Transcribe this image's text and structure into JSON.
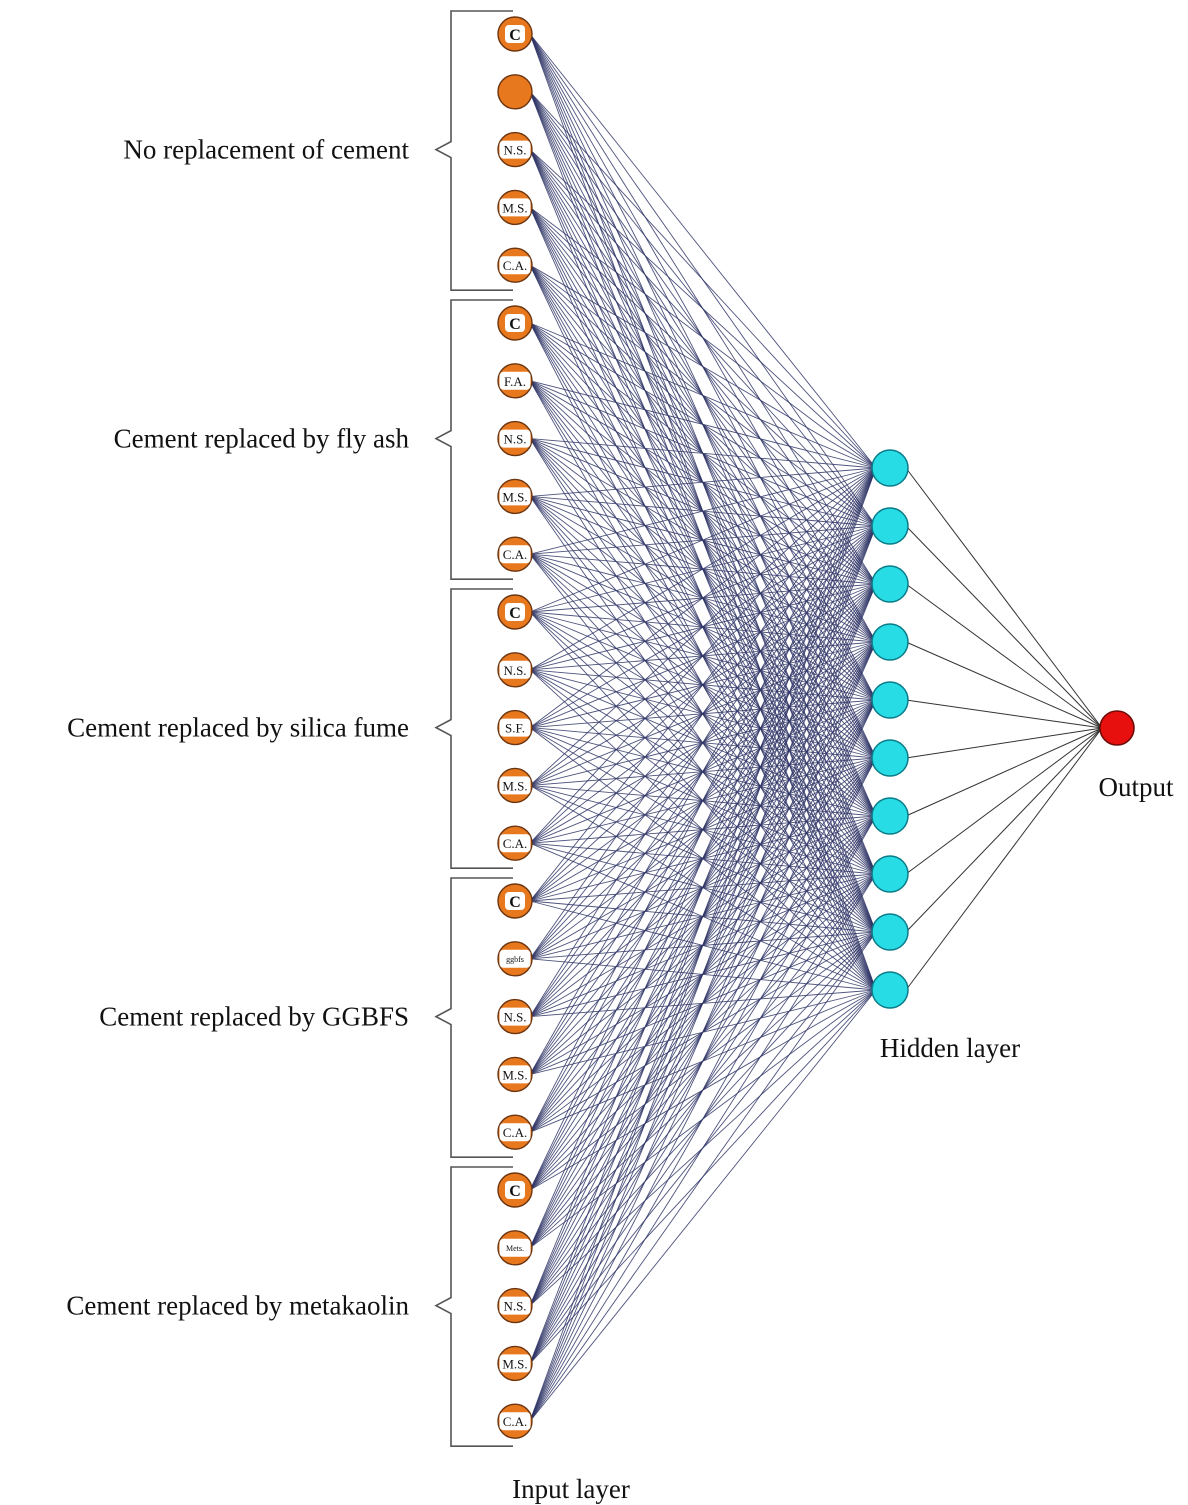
{
  "colors": {
    "input_node": "#e8781e",
    "input_node_stroke": "#6b3510",
    "input_label_bg": "#ffffff",
    "hidden_node": "#28dce6",
    "hidden_node_stroke": "#0a7c88",
    "output_node": "#e8100e",
    "output_node_stroke": "#6e0b08",
    "connection": "#2f3566",
    "bracket": "#555555",
    "text": "#111111"
  },
  "groups": [
    {
      "label": "No replacement of cement",
      "inputs": [
        "C",
        "",
        "N.S.",
        "M.S.",
        "C.A."
      ]
    },
    {
      "label": "Cement replaced by fly ash",
      "inputs": [
        "C",
        "F.A.",
        "N.S.",
        "M.S.",
        "C.A."
      ]
    },
    {
      "label": "Cement replaced by silica fume",
      "inputs": [
        "C",
        "N.S.",
        "S.F.",
        "M.S.",
        "C.A."
      ]
    },
    {
      "label": "Cement replaced by GGBFS",
      "inputs": [
        "C",
        "ggbfs",
        "N.S.",
        "M.S.",
        "C.A."
      ]
    },
    {
      "label": "Cement replaced by metakaolin",
      "inputs": [
        "C",
        "Mets.",
        "N.S.",
        "M.S.",
        "C.A."
      ]
    }
  ],
  "hidden_layer": {
    "label": "Hidden layer",
    "node_count": 10
  },
  "output_layer": {
    "label": "Output",
    "node_count": 1
  },
  "input_layer": {
    "label": "Input layer"
  }
}
